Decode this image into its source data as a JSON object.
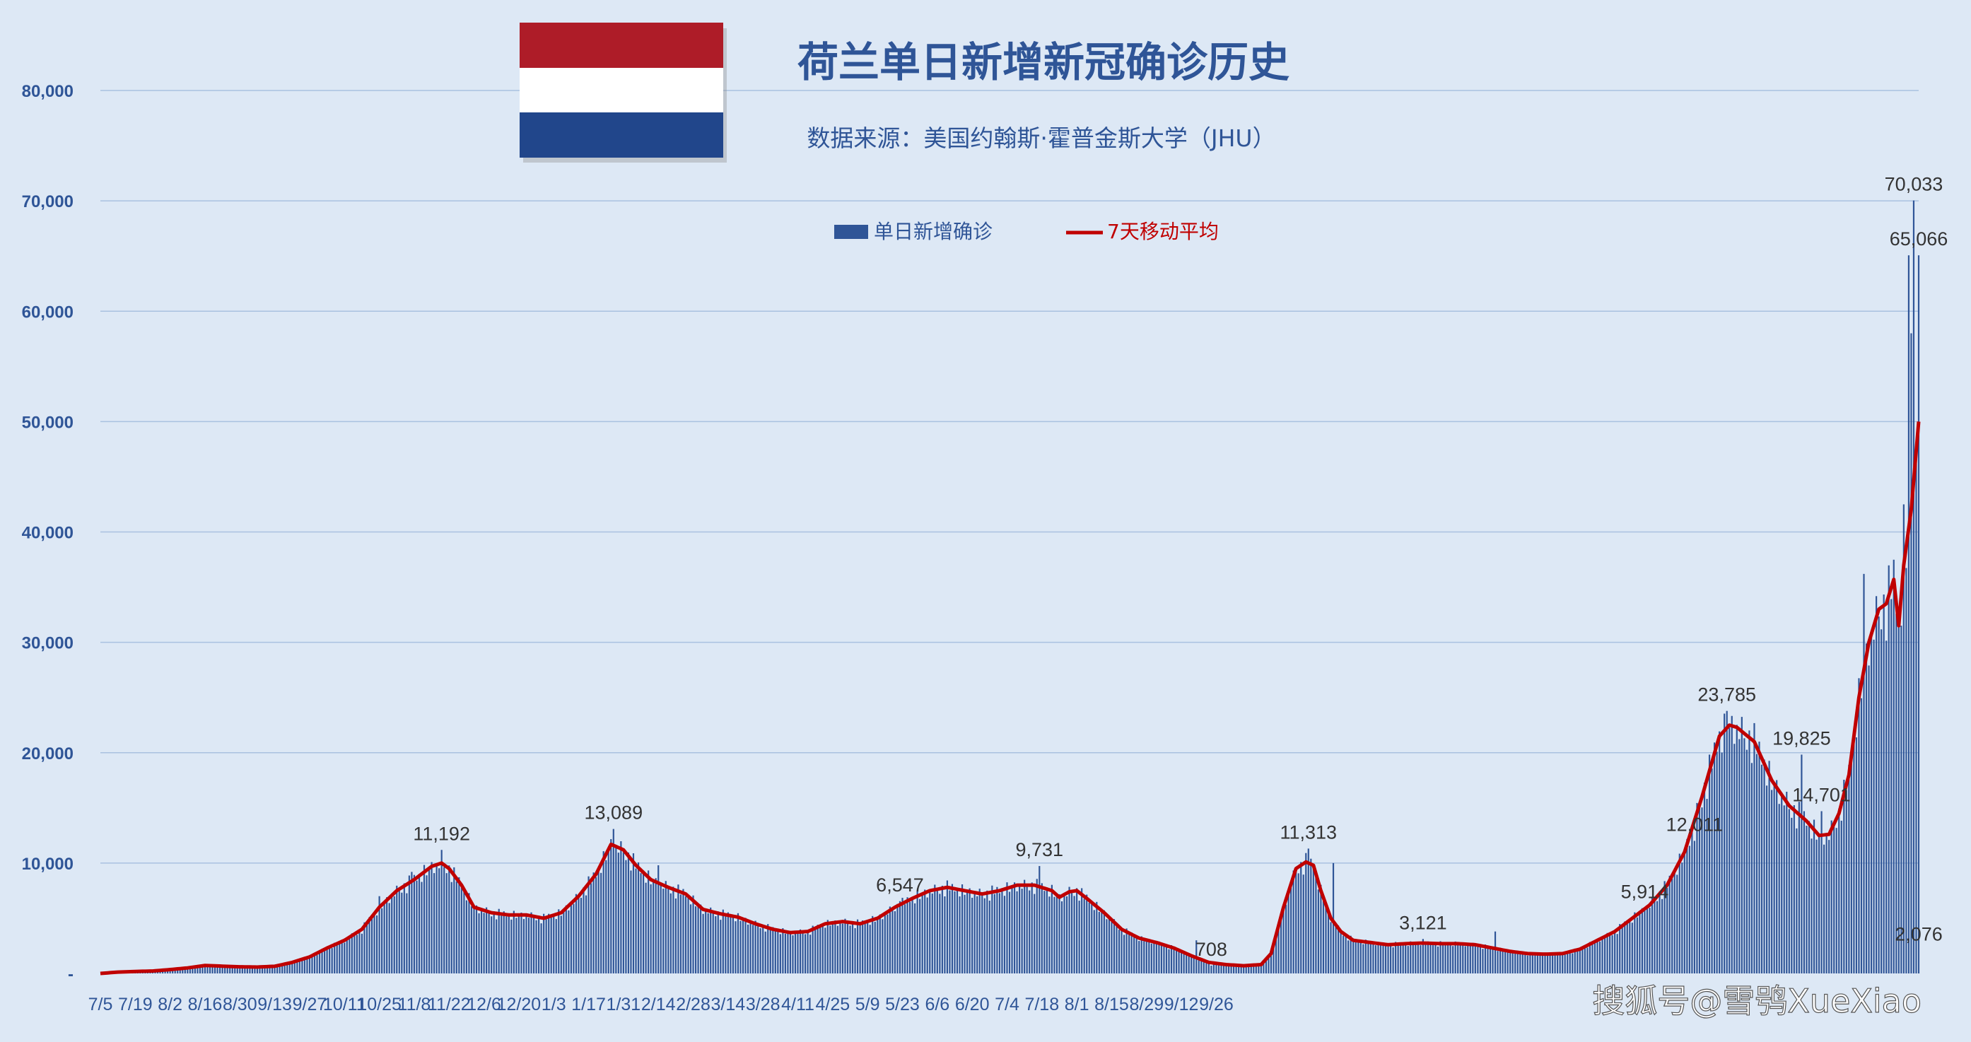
{
  "chart_data": {
    "type": "bar",
    "title": "荷兰单日新增新冠确诊历史",
    "subtitle": "数据来源：美国约翰斯·霍普金斯大学（JHU）",
    "ylim": [
      0,
      80000
    ],
    "yticks": [
      "-",
      "10,000",
      "20,000",
      "30,000",
      "40,000",
      "50,000",
      "60,000",
      "70,000",
      "80,000"
    ],
    "x_tick_labels": [
      "7/5",
      "7/19",
      "8/2",
      "8/16",
      "8/30",
      "9/13",
      "9/27",
      "10/11",
      "10/25",
      "11/8",
      "11/22",
      "12/6",
      "12/20",
      "1/3",
      "1/17",
      "1/31",
      "2/14",
      "2/28",
      "3/14",
      "3/28",
      "4/11",
      "4/25",
      "5/9",
      "5/23",
      "6/6",
      "6/20",
      "7/4",
      "7/18",
      "8/1",
      "8/15",
      "8/29",
      "9/12",
      "9/26"
    ],
    "grid": true,
    "legend_position": "top-center",
    "series": [
      {
        "name": "单日新增确诊",
        "kind": "bar",
        "color": "#2f5597"
      },
      {
        "name": "7天移动平均",
        "kind": "line",
        "color": "#c00000"
      }
    ],
    "data_labels": [
      "11,192",
      "13,089",
      "6,547",
      "9,731",
      "708",
      "11,313",
      "3,121",
      "5,914",
      "12,011",
      "23,785",
      "19,825",
      "14,701",
      "70,033",
      "65,066",
      "2,076"
    ],
    "anchors": [
      [
        0,
        0
      ],
      [
        7,
        120
      ],
      [
        14,
        180
      ],
      [
        21,
        220
      ],
      [
        28,
        350
      ],
      [
        35,
        500
      ],
      [
        42,
        720
      ],
      [
        49,
        660
      ],
      [
        56,
        600
      ],
      [
        63,
        580
      ],
      [
        70,
        650
      ],
      [
        77,
        1000
      ],
      [
        84,
        1500
      ],
      [
        91,
        2300
      ],
      [
        98,
        3000
      ],
      [
        105,
        4000
      ],
      [
        112,
        6000
      ],
      [
        119,
        7500
      ],
      [
        126,
        8500
      ],
      [
        133,
        9700
      ],
      [
        137,
        10000
      ],
      [
        140,
        9500
      ],
      [
        145,
        8000
      ],
      [
        150,
        6000
      ],
      [
        157,
        5500
      ],
      [
        164,
        5300
      ],
      [
        171,
        5300
      ],
      [
        178,
        5000
      ],
      [
        185,
        5500
      ],
      [
        192,
        7000
      ],
      [
        199,
        9000
      ],
      [
        205,
        11700
      ],
      [
        210,
        11200
      ],
      [
        215,
        9800
      ],
      [
        221,
        8500
      ],
      [
        228,
        7800
      ],
      [
        235,
        7200
      ],
      [
        242,
        5800
      ],
      [
        249,
        5400
      ],
      [
        256,
        5100
      ],
      [
        263,
        4500
      ],
      [
        270,
        4000
      ],
      [
        277,
        3700
      ],
      [
        284,
        3800
      ],
      [
        291,
        4500
      ],
      [
        298,
        4700
      ],
      [
        305,
        4500
      ],
      [
        312,
        5000
      ],
      [
        319,
        6000
      ],
      [
        326,
        6800
      ],
      [
        333,
        7500
      ],
      [
        340,
        7800
      ],
      [
        347,
        7500
      ],
      [
        354,
        7200
      ],
      [
        361,
        7500
      ],
      [
        368,
        8000
      ],
      [
        375,
        8000
      ],
      [
        382,
        7500
      ],
      [
        385,
        6900
      ],
      [
        389,
        7400
      ],
      [
        392,
        7500
      ],
      [
        396,
        6800
      ],
      [
        403,
        5500
      ],
      [
        410,
        4000
      ],
      [
        417,
        3200
      ],
      [
        424,
        2800
      ],
      [
        431,
        2300
      ],
      [
        438,
        1600
      ],
      [
        445,
        1000
      ],
      [
        452,
        800
      ],
      [
        459,
        700
      ],
      [
        466,
        800
      ],
      [
        470,
        1800
      ],
      [
        475,
        6000
      ],
      [
        480,
        9500
      ],
      [
        484,
        10100
      ],
      [
        487,
        9800
      ],
      [
        490,
        7500
      ],
      [
        494,
        5000
      ],
      [
        498,
        3800
      ],
      [
        503,
        3000
      ],
      [
        510,
        2800
      ],
      [
        517,
        2600
      ],
      [
        524,
        2700
      ],
      [
        531,
        2750
      ],
      [
        538,
        2700
      ],
      [
        545,
        2700
      ],
      [
        552,
        2600
      ],
      [
        559,
        2300
      ],
      [
        566,
        2000
      ],
      [
        573,
        1800
      ],
      [
        580,
        1750
      ],
      [
        587,
        1800
      ],
      [
        594,
        2200
      ],
      [
        601,
        3000
      ],
      [
        608,
        3800
      ],
      [
        615,
        5000
      ],
      [
        622,
        6200
      ],
      [
        629,
        8000
      ],
      [
        636,
        11000
      ],
      [
        643,
        16000
      ],
      [
        650,
        21500
      ],
      [
        654,
        22500
      ],
      [
        657,
        22300
      ],
      [
        664,
        21000
      ],
      [
        671,
        17500
      ],
      [
        678,
        15200
      ],
      [
        685,
        13800
      ],
      [
        690,
        12500
      ],
      [
        694,
        12600
      ],
      [
        698,
        14500
      ],
      [
        702,
        18000
      ],
      [
        706,
        25000
      ],
      [
        710,
        30000
      ],
      [
        714,
        33000
      ],
      [
        717,
        33500
      ],
      [
        720,
        35700
      ],
      [
        722,
        31500
      ],
      [
        724,
        37000
      ],
      [
        727,
        42000
      ],
      [
        730,
        50000
      ]
    ],
    "bar_ratios": [
      1.05,
      0.97,
      1.02,
      0.92,
      1.07,
      0.95,
      0.99,
      1.04,
      0.93,
      1.01,
      0.96,
      1.06,
      0.98,
      0.94,
      1.03,
      0.9,
      1.08,
      0.97
    ],
    "spikes": [
      [
        112,
        7000
      ],
      [
        125,
        9200
      ],
      [
        137,
        11192
      ],
      [
        206,
        13089
      ],
      [
        224,
        9800
      ],
      [
        321,
        6547
      ],
      [
        377,
        9731
      ],
      [
        440,
        3000
      ],
      [
        446,
        708
      ],
      [
        485,
        11313
      ],
      [
        495,
        10000
      ],
      [
        531,
        3121
      ],
      [
        560,
        3800
      ],
      [
        620,
        5914
      ],
      [
        640,
        12011
      ],
      [
        653,
        23785
      ],
      [
        683,
        19825
      ],
      [
        691,
        14701
      ],
      [
        708,
        36200
      ],
      [
        724,
        42500
      ],
      [
        726,
        65066
      ],
      [
        727,
        58000
      ],
      [
        728,
        70033
      ],
      [
        730,
        65066
      ]
    ],
    "label_points": [
      [
        137,
        11192,
        "11,192"
      ],
      [
        206,
        13089,
        "13,089"
      ],
      [
        321,
        6547,
        "6,547"
      ],
      [
        377,
        9731,
        "9,731"
      ],
      [
        446,
        708,
        "708"
      ],
      [
        485,
        11313,
        "11,313"
      ],
      [
        531,
        3121,
        "3,121"
      ],
      [
        620,
        5914,
        "5,914"
      ],
      [
        640,
        12011,
        "12,011"
      ],
      [
        653,
        23785,
        "23,785"
      ],
      [
        683,
        19825,
        "19,825"
      ],
      [
        691,
        14701,
        "14,701"
      ],
      [
        728,
        70033,
        "70,033"
      ],
      [
        730,
        65066,
        "65,066"
      ],
      [
        730,
        2076,
        "2,076"
      ]
    ]
  },
  "colors": {
    "background": "#dde8f5",
    "bars": "#2f5597",
    "line": "#c00000",
    "gridline": "#a9c1e0",
    "flag_red": "#ae1c28",
    "flag_white": "#ffffff",
    "flag_blue": "#21468b"
  },
  "watermark": "搜狐号@雪鸮XueXiao"
}
